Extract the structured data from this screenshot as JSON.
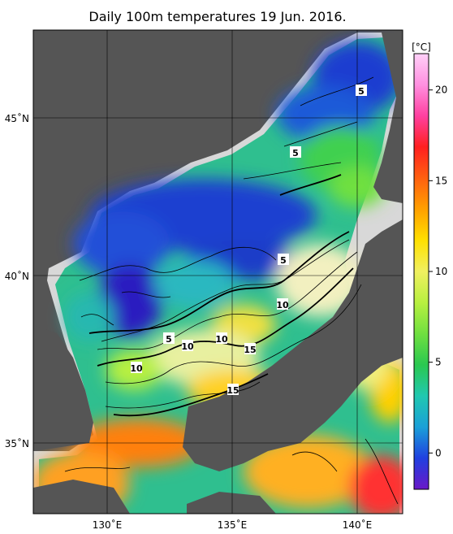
{
  "title": "Daily 100m temperatures 19 Jun. 2016.",
  "colorbar": {
    "unit": "[°C]",
    "ticks": [
      "20",
      "15",
      "10",
      "5",
      "0"
    ],
    "tick_values": [
      20,
      15,
      10,
      5,
      0
    ],
    "range": [
      -2,
      22
    ],
    "colors": [
      "#6a18c8",
      "#2040e0",
      "#1aa0d8",
      "#20c8b0",
      "#2ac850",
      "#70e040",
      "#b8f040",
      "#f0f060",
      "#ffe000",
      "#ffa000",
      "#ff6010",
      "#ff2020",
      "#ff40a0",
      "#ff90e0",
      "#ffd0f8"
    ]
  },
  "axes": {
    "lat_labels": [
      "45˚N",
      "40˚N",
      "35˚N"
    ],
    "lat_values": [
      45,
      40,
      35
    ],
    "lon_labels": [
      "130˚E",
      "135˚E",
      "140˚E"
    ],
    "lon_values": [
      130,
      135,
      140
    ],
    "lon_range": [
      127,
      142
    ],
    "lat_range": [
      33,
      47.7
    ]
  },
  "contour_labels": [
    "5",
    "5",
    "5",
    "10",
    "5",
    "10",
    "10",
    "15",
    "10",
    "15"
  ],
  "colors": {
    "land": "#555555",
    "no_data": "#d8d8d8",
    "frame": "#000000"
  }
}
